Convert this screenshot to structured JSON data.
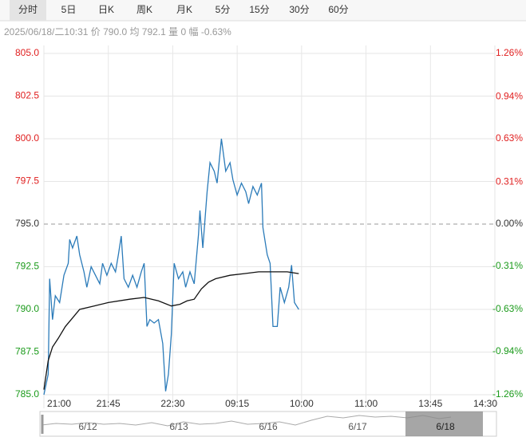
{
  "tabs": [
    "分时",
    "5日",
    "日K",
    "周K",
    "月K",
    "5分",
    "15分",
    "30分",
    "60分"
  ],
  "active_tab": 0,
  "info": "2025/06/18/二10:31  价 790.0  均 792.1  量 0  幅 -0.63%",
  "chart_data": {
    "type": "line",
    "base": 795,
    "colors": {
      "up": "#e02020",
      "flat": "#333333",
      "down": "#1a9a1a"
    },
    "xlim": [
      0,
      315
    ],
    "xticks": [
      {
        "value": 0,
        "label": "21:00"
      },
      {
        "value": 45,
        "label": "21:45"
      },
      {
        "value": 90,
        "label": "22:30"
      },
      {
        "value": 135,
        "label": "09:15"
      },
      {
        "value": 180,
        "label": "10:00"
      },
      {
        "value": 225,
        "label": "11:00"
      },
      {
        "value": 270,
        "label": "13:45"
      },
      {
        "value": 315,
        "label": "14:30"
      }
    ],
    "ylim": [
      785,
      805
    ],
    "yticks": [
      {
        "value": 805,
        "label": "805.0"
      },
      {
        "value": 802.5,
        "label": "802.5"
      },
      {
        "value": 800,
        "label": "800.0"
      },
      797.5,
      {
        "value": 795,
        "label": "795.0"
      },
      792.5,
      {
        "value": 790,
        "label": "790.0"
      },
      787.5,
      {
        "value": 785,
        "label": "785.0"
      }
    ],
    "y2lim": [
      -1.26,
      1.26
    ],
    "y2ticks": [
      {
        "value": 1.26,
        "label": "1.26%"
      },
      {
        "value": 0.94,
        "label": "0.94%"
      },
      {
        "value": 0.63,
        "label": "0.63%"
      },
      {
        "value": 0.31,
        "label": "0.31%"
      },
      {
        "value": 0,
        "label": "0.00%"
      },
      {
        "value": -0.31,
        "label": "-0.31%"
      },
      {
        "value": -0.63,
        "label": "-0.63%"
      },
      {
        "value": -0.94,
        "label": "-0.94%"
      },
      {
        "value": -1.26,
        "label": "-1.26%"
      }
    ],
    "grid": true,
    "series": [
      {
        "color": "#2b7bb9",
        "x": [
          0,
          3,
          4,
          6,
          8,
          11,
          14,
          17,
          18,
          20,
          23,
          25,
          28,
          30,
          33,
          36,
          39,
          41,
          44,
          47,
          50,
          52,
          54,
          56,
          59,
          62,
          65,
          68,
          70,
          72,
          74,
          77,
          80,
          83,
          85,
          87,
          89,
          91,
          94,
          97,
          99,
          102,
          105,
          108,
          109,
          111,
          114,
          116,
          119,
          121,
          124,
          127,
          130,
          132,
          135,
          138,
          141,
          143,
          146,
          149,
          152,
          153,
          156,
          158,
          160,
          163,
          165,
          168,
          171,
          173,
          175,
          178
        ],
        "values": [
          785.0,
          786.2,
          791.8,
          789.4,
          790.8,
          790.4,
          792.0,
          792.7,
          794.1,
          793.6,
          794.3,
          793.2,
          792.2,
          791.3,
          792.5,
          792.0,
          791.5,
          792.7,
          792.0,
          792.7,
          792.2,
          793.2,
          794.3,
          791.8,
          791.3,
          792.0,
          791.3,
          792.2,
          792.7,
          789.0,
          789.4,
          789.2,
          789.4,
          788.0,
          785.2,
          786.2,
          788.5,
          792.7,
          791.8,
          792.2,
          791.3,
          792.2,
          791.5,
          794.4,
          795.8,
          793.6,
          796.9,
          798.6,
          798.1,
          797.4,
          800.0,
          798.1,
          798.6,
          797.6,
          796.7,
          797.4,
          796.9,
          796.2,
          797.2,
          796.7,
          797.4,
          794.8,
          793.2,
          792.7,
          789.0,
          789.0,
          791.3,
          790.4,
          791.3,
          792.6,
          790.4,
          790.0
        ]
      },
      {
        "color": "#111111",
        "x": [
          0,
          3,
          6,
          10,
          15,
          20,
          25,
          35,
          45,
          60,
          70,
          80,
          89,
          95,
          100,
          105,
          110,
          115,
          120,
          130,
          140,
          150,
          160,
          170,
          178
        ],
        "values": [
          785.3,
          787.0,
          787.8,
          788.3,
          789.0,
          789.5,
          790.0,
          790.2,
          790.4,
          790.6,
          790.7,
          790.5,
          790.2,
          790.3,
          790.5,
          790.6,
          791.2,
          791.6,
          791.8,
          792.0,
          792.1,
          792.2,
          792.2,
          792.2,
          792.1
        ]
      }
    ],
    "navigator_dates": [
      "6/12",
      "6/13",
      "6/16",
      "6/17",
      "6/18"
    ]
  }
}
